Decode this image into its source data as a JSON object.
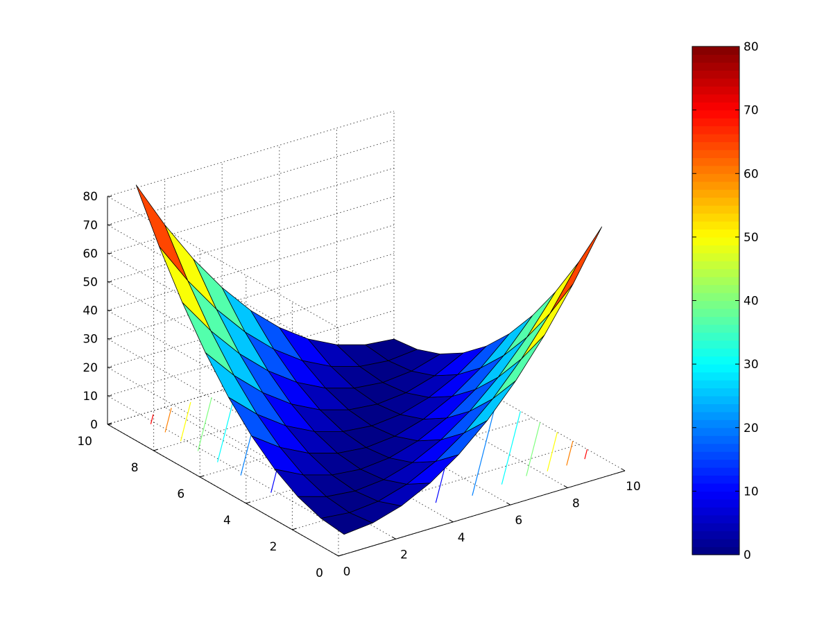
{
  "chart_data": {
    "type": "surface",
    "title": "",
    "xlabel": "",
    "ylabel": "",
    "zlabel": "",
    "grid": true,
    "contour_on_floor": true,
    "colormap": "jet",
    "xlim": [
      0,
      10
    ],
    "ylim": [
      0,
      10
    ],
    "zlim": [
      0,
      80
    ],
    "x_ticks": [
      "0",
      "2",
      "4",
      "6",
      "8",
      "10"
    ],
    "y_ticks": [
      "0",
      "2",
      "4",
      "6",
      "8",
      "10"
    ],
    "z_ticks": [
      "0",
      "10",
      "20",
      "30",
      "40",
      "50",
      "60",
      "70",
      "80"
    ],
    "function": "z = (x - y)^2 on a 10x10 grid, x and y from 1 to 10",
    "grid_x": [
      1,
      2,
      3,
      4,
      5,
      6,
      7,
      8,
      9,
      10
    ],
    "grid_y": [
      1,
      2,
      3,
      4,
      5,
      6,
      7,
      8,
      9,
      10
    ],
    "contour_levels": [
      10,
      20,
      30,
      40,
      50,
      60,
      70
    ],
    "colorbar": {
      "ticks": [
        "0",
        "10",
        "20",
        "30",
        "40",
        "50",
        "60",
        "70",
        "80"
      ],
      "range": [
        0,
        80
      ],
      "placement": "right"
    }
  }
}
